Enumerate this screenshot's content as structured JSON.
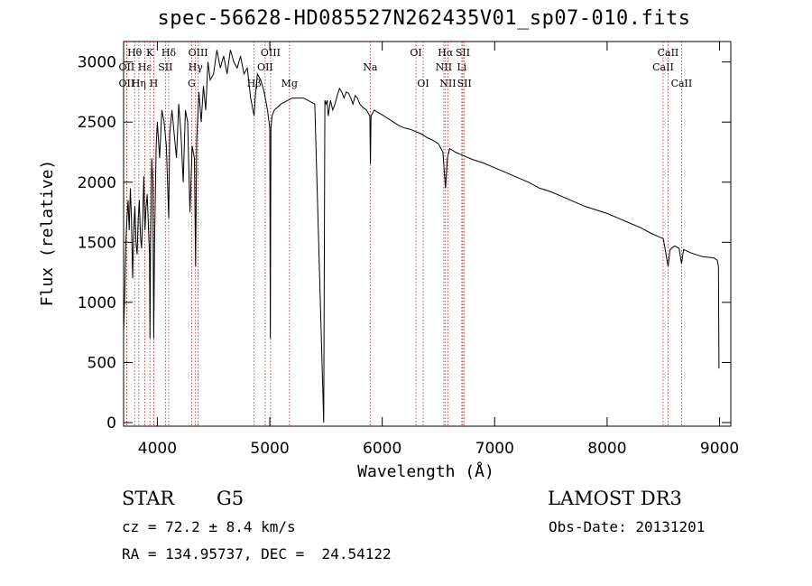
{
  "chart_data": {
    "type": "line",
    "title": "spec-56628-HD085527N262435V01_sp07-010.fits",
    "xlabel": "Wavelength (Å)",
    "ylabel": "Flux (relative)",
    "xlim": [
      3700,
      9100
    ],
    "ylim": [
      -30,
      3170
    ],
    "xticks": [
      4000,
      5000,
      6000,
      7000,
      8000,
      9000
    ],
    "xtick_labels": [
      "4000",
      "5000",
      "6000",
      "7000",
      "8000",
      "9000"
    ],
    "yticks": [
      0,
      500,
      1000,
      1500,
      2000,
      2500,
      3000
    ],
    "ytick_labels": [
      "0",
      "500",
      "1000",
      "1500",
      "2000",
      "2500",
      "3000"
    ],
    "series": [
      {
        "name": "flux",
        "x": [
          3700,
          3710,
          3720,
          3730,
          3740,
          3750,
          3760,
          3770,
          3780,
          3790,
          3800,
          3810,
          3820,
          3830,
          3840,
          3850,
          3860,
          3870,
          3880,
          3890,
          3900,
          3910,
          3920,
          3930,
          3934,
          3940,
          3950,
          3960,
          3968,
          3975,
          3990,
          4000,
          4020,
          4040,
          4060,
          4080,
          4101,
          4110,
          4130,
          4150,
          4170,
          4190,
          4210,
          4230,
          4250,
          4270,
          4290,
          4310,
          4330,
          4340,
          4350,
          4370,
          4390,
          4410,
          4430,
          4450,
          4470,
          4500,
          4530,
          4560,
          4590,
          4620,
          4650,
          4680,
          4710,
          4740,
          4770,
          4800,
          4830,
          4861,
          4870,
          4890,
          4920,
          4950,
          4980,
          5000,
          5005,
          5010,
          5020,
          5040,
          5100,
          5200,
          5300,
          5400,
          5480,
          5490,
          5500,
          5510,
          5520,
          5540,
          5560,
          5580,
          5600,
          5620,
          5640,
          5660,
          5680,
          5700,
          5720,
          5740,
          5760,
          5780,
          5800,
          5830,
          5860,
          5890,
          5895,
          5900,
          5930,
          5960,
          6000,
          6050,
          6100,
          6150,
          6200,
          6250,
          6300,
          6350,
          6400,
          6450,
          6500,
          6540,
          6563,
          6580,
          6600,
          6650,
          6700,
          6750,
          6800,
          6900,
          7000,
          7100,
          7200,
          7300,
          7400,
          7500,
          7600,
          7700,
          7800,
          7900,
          8000,
          8100,
          8200,
          8300,
          8400,
          8450,
          8500,
          8520,
          8542,
          8560,
          8600,
          8640,
          8662,
          8680,
          8750,
          8850,
          8950,
          8980,
          8990,
          8995
        ],
        "values": [
          750,
          1050,
          1500,
          1700,
          1850,
          1600,
          1950,
          1700,
          1200,
          1600,
          1800,
          1500,
          1400,
          1700,
          1850,
          1550,
          1450,
          1700,
          2050,
          1600,
          1800,
          1900,
          1650,
          1400,
          700,
          1500,
          2200,
          2000,
          700,
          1500,
          2300,
          2500,
          2200,
          2600,
          2500,
          2300,
          1700,
          2400,
          2600,
          2400,
          2200,
          2650,
          2400,
          2000,
          2600,
          2500,
          1750,
          2300,
          2200,
          1300,
          2350,
          2750,
          2500,
          2800,
          2600,
          3000,
          2850,
          2900,
          3100,
          2950,
          3050,
          2900,
          3100,
          3000,
          2950,
          3050,
          2900,
          2950,
          2700,
          2550,
          2700,
          2900,
          2850,
          2750,
          2600,
          2450,
          700,
          2450,
          2550,
          2600,
          2650,
          2700,
          2700,
          2650,
          0,
          2680,
          2650,
          2680,
          2550,
          2680,
          2600,
          2650,
          2720,
          2780,
          2750,
          2700,
          2750,
          2740,
          2700,
          2650,
          2720,
          2700,
          2650,
          2620,
          2600,
          2550,
          2150,
          2550,
          2600,
          2580,
          2560,
          2530,
          2500,
          2470,
          2450,
          2440,
          2420,
          2400,
          2370,
          2350,
          2320,
          2250,
          1950,
          2200,
          2280,
          2250,
          2230,
          2210,
          2190,
          2160,
          2120,
          2080,
          2040,
          2000,
          1950,
          1920,
          1880,
          1840,
          1800,
          1770,
          1740,
          1700,
          1660,
          1620,
          1570,
          1550,
          1530,
          1420,
          1300,
          1440,
          1470,
          1450,
          1320,
          1440,
          1410,
          1380,
          1370,
          1350,
          1300,
          450
        ]
      }
    ],
    "lines": [
      {
        "label": "Hθ",
        "x": 3798,
        "row": 1
      },
      {
        "label": "OII",
        "x": 3727,
        "row": 2
      },
      {
        "label": "OII",
        "x": 3727,
        "row": 3
      },
      {
        "label": "Hε",
        "x": 3889,
        "row": 2
      },
      {
        "label": "Hη",
        "x": 3835,
        "row": 3
      },
      {
        "label": "K",
        "x": 3934,
        "row": 1
      },
      {
        "label": "H",
        "x": 3968,
        "row": 3
      },
      {
        "label": "Hδ",
        "x": 4101,
        "row": 1
      },
      {
        "label": "SII",
        "x": 4072,
        "row": 2
      },
      {
        "label": "OIII",
        "x": 4363,
        "row": 1
      },
      {
        "label": "Hγ",
        "x": 4340,
        "row": 2
      },
      {
        "label": "G",
        "x": 4305,
        "row": 3
      },
      {
        "label": "Hβ",
        "x": 4861,
        "row": 3
      },
      {
        "label": "OIII",
        "x": 5007,
        "row": 1
      },
      {
        "label": "OII",
        "x": 4959,
        "row": 2
      },
      {
        "label": "Mg",
        "x": 5175,
        "row": 3
      },
      {
        "label": "Na",
        "x": 5893,
        "row": 2
      },
      {
        "label": "OI",
        "x": 6300,
        "row": 1
      },
      {
        "label": "OI",
        "x": 6364,
        "row": 3
      },
      {
        "label": "Hα",
        "x": 6563,
        "row": 1
      },
      {
        "label": "NII",
        "x": 6548,
        "row": 2
      },
      {
        "label": "NII",
        "x": 6584,
        "row": 3
      },
      {
        "label": "SII",
        "x": 6717,
        "row": 1
      },
      {
        "label": "Li",
        "x": 6708,
        "row": 2
      },
      {
        "label": "SII",
        "x": 6731,
        "row": 3
      },
      {
        "label": "CaII",
        "x": 8542,
        "row": 1
      },
      {
        "label": "CaII",
        "x": 8498,
        "row": 2
      },
      {
        "label": "CaII",
        "x": 8662,
        "row": 3
      }
    ]
  },
  "info": {
    "object_class": "STAR",
    "subclass": "G5",
    "survey": "LAMOST DR3",
    "cz": "cz = 72.2 ± 8.4 km/s",
    "obs_date": "Obs-Date: 20131201",
    "coords": "RA = 134.95737, DEC =  24.54122"
  }
}
